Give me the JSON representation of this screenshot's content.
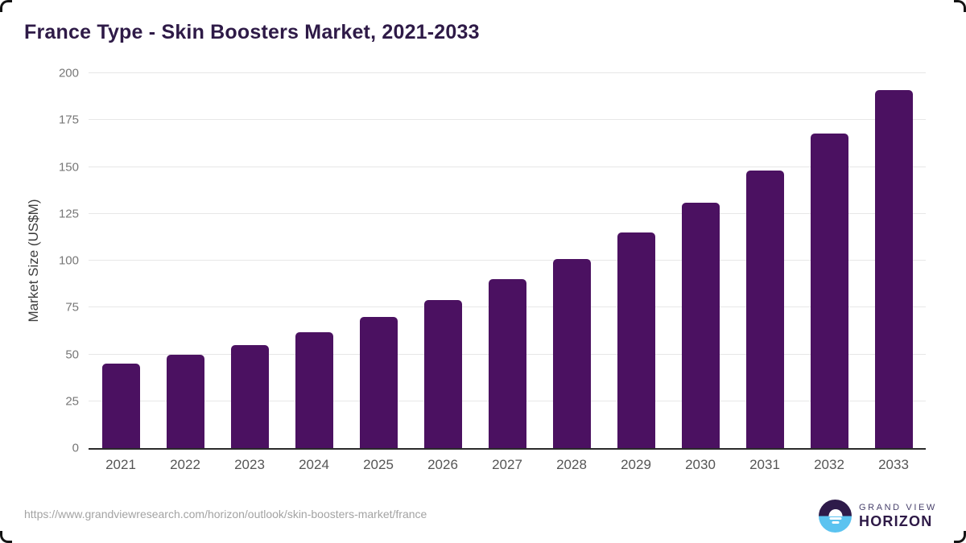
{
  "chart_data": {
    "type": "bar",
    "title": "France Type - Skin Boosters Market, 2021-2033",
    "categories": [
      "2021",
      "2022",
      "2023",
      "2024",
      "2025",
      "2026",
      "2027",
      "2028",
      "2029",
      "2030",
      "2031",
      "2032",
      "2033"
    ],
    "values": [
      45,
      50,
      55,
      62,
      70,
      79,
      90,
      101,
      115,
      131,
      148,
      168,
      191
    ],
    "xlabel": "",
    "ylabel": "Market Size (US$M)",
    "ylim": [
      0,
      200
    ],
    "ytick_step": 25,
    "grid": true,
    "legend": "none",
    "bar_color": "#4b1161"
  },
  "footer": {
    "source_url": "https://www.grandviewresearch.com/horizon/outlook/skin-boosters-market/france",
    "logo": {
      "line1": "GRAND VIEW",
      "line2": "HORIZON",
      "icon": "horizon-sunrise-circle"
    }
  },
  "colors": {
    "title": "#2e1a47",
    "bar": "#4b1161",
    "grid": "#e7e7e7",
    "axis_line": "#2b2b2b",
    "tick_label": "#777777",
    "x_label": "#555555",
    "url_text": "#a3a3a3",
    "logo_blue": "#5bc3f0",
    "logo_purple": "#2e1b4a"
  }
}
